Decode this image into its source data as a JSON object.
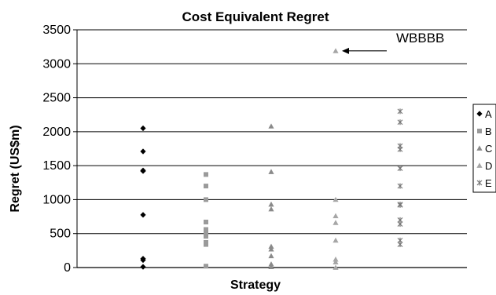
{
  "chart_data": {
    "type": "scatter",
    "title": "Cost Equivalent Regret",
    "xlabel": "Strategy",
    "ylabel": "Regret (US$m)",
    "ylim": [
      0,
      3500
    ],
    "yticks": [
      0,
      500,
      1000,
      1500,
      2000,
      2500,
      3000,
      3500
    ],
    "grid": true,
    "legend_position": "right",
    "series": [
      {
        "name": "A",
        "marker": "diamond",
        "color": "#000000",
        "values": [
          2050,
          1710,
          1430,
          1420,
          775,
          130,
          110,
          10
        ]
      },
      {
        "name": "B",
        "marker": "square",
        "color": "#9a9a9a",
        "values": [
          1370,
          1200,
          1000,
          670,
          560,
          500,
          460,
          370,
          340,
          20
        ]
      },
      {
        "name": "C",
        "marker": "triangle",
        "color": "#8a8a8a",
        "values": [
          2080,
          1410,
          930,
          860,
          310,
          270,
          170,
          50,
          10
        ]
      },
      {
        "name": "D",
        "marker": "triangle",
        "color": "#a6a6a6",
        "values": [
          3190,
          1000,
          760,
          660,
          400,
          120,
          80,
          0
        ]
      },
      {
        "name": "E",
        "marker": "star",
        "color": "#7a7a7a",
        "values": [
          2300,
          2140,
          1790,
          1740,
          1460,
          1200,
          930,
          920,
          700,
          640,
          400,
          340
        ]
      }
    ],
    "annotations": [
      {
        "text": "WBBBB",
        "series": "D",
        "value": 3190
      }
    ]
  }
}
